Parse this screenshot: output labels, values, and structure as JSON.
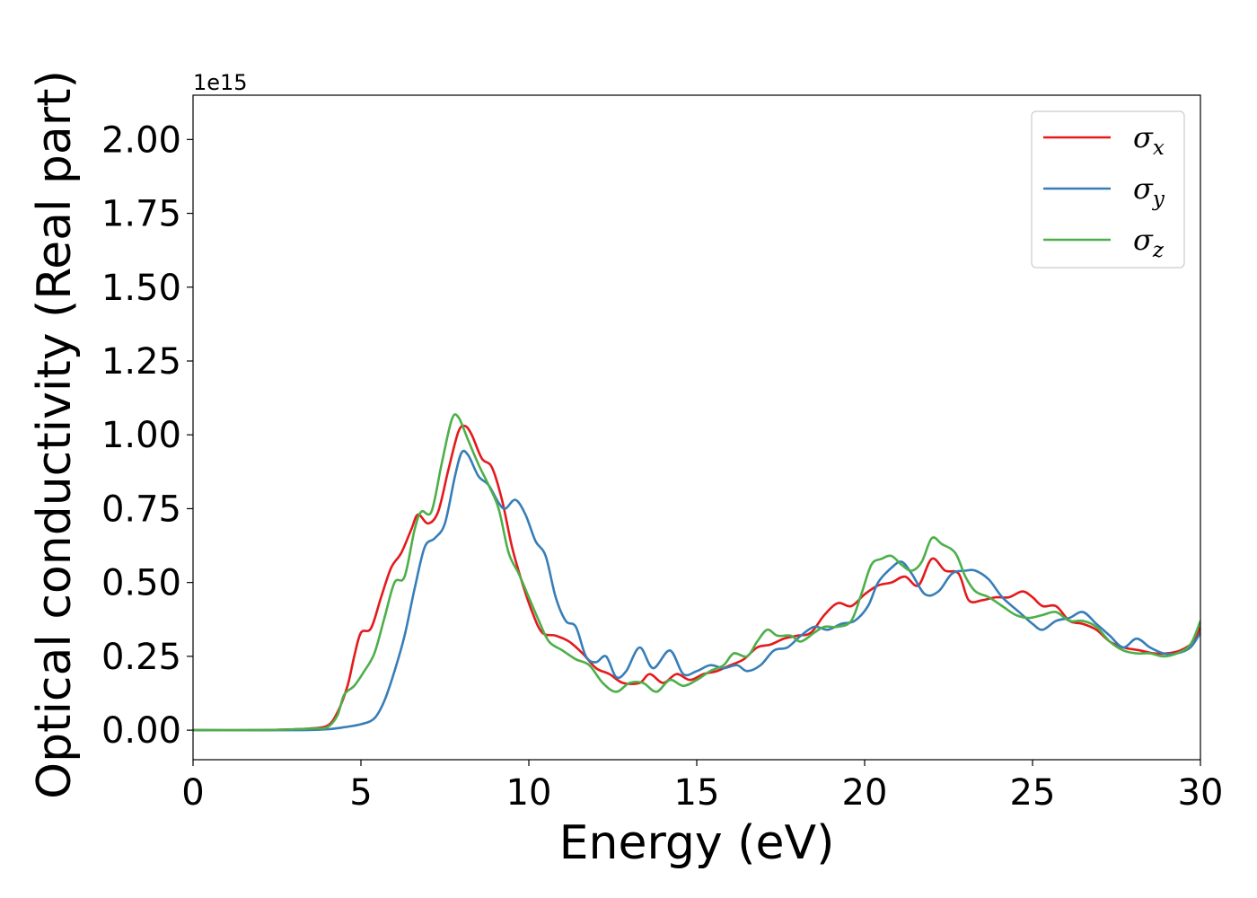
{
  "chart_data": {
    "type": "line",
    "xlabel": "Energy (eV)",
    "ylabel": "Optical conductivity (Real part)",
    "y_offset_label": "1e15",
    "xlim": [
      0,
      30
    ],
    "ylim": [
      -0.1,
      2.15
    ],
    "x_ticks": [
      0,
      5,
      10,
      15,
      20,
      25,
      30
    ],
    "x_tick_labels": [
      "0",
      "5",
      "10",
      "15",
      "20",
      "25",
      "30"
    ],
    "y_ticks": [
      0.0,
      0.25,
      0.5,
      0.75,
      1.0,
      1.25,
      1.5,
      1.75,
      2.0
    ],
    "y_tick_labels": [
      "0.00",
      "0.25",
      "0.50",
      "0.75",
      "1.00",
      "1.25",
      "1.50",
      "1.75",
      "2.00"
    ],
    "grid": false,
    "legend_position": "top-right",
    "legend": [
      {
        "symbol": "σ",
        "subscript": "x",
        "color": "#e41a1c"
      },
      {
        "symbol": "σ",
        "subscript": "y",
        "color": "#377eb8"
      },
      {
        "symbol": "σ",
        "subscript": "z",
        "color": "#4daf4a"
      }
    ],
    "series": [
      {
        "color": "#e41a1c",
        "points": [
          [
            0,
            0
          ],
          [
            2,
            0
          ],
          [
            3,
            0.003
          ],
          [
            3.5,
            0.006
          ],
          [
            4,
            0.015
          ],
          [
            4.3,
            0.06
          ],
          [
            4.6,
            0.15
          ],
          [
            4.8,
            0.25
          ],
          [
            5,
            0.33
          ],
          [
            5.3,
            0.345
          ],
          [
            5.6,
            0.45
          ],
          [
            5.9,
            0.55
          ],
          [
            6.2,
            0.6
          ],
          [
            6.5,
            0.68
          ],
          [
            6.7,
            0.73
          ],
          [
            7,
            0.7
          ],
          [
            7.3,
            0.74
          ],
          [
            7.6,
            0.88
          ],
          [
            7.9,
            1.01
          ],
          [
            8.1,
            1.03
          ],
          [
            8.3,
            1.0
          ],
          [
            8.6,
            0.92
          ],
          [
            8.9,
            0.89
          ],
          [
            9.2,
            0.78
          ],
          [
            9.5,
            0.62
          ],
          [
            9.8,
            0.5
          ],
          [
            10.1,
            0.4
          ],
          [
            10.4,
            0.33
          ],
          [
            10.8,
            0.32
          ],
          [
            11.2,
            0.3
          ],
          [
            11.6,
            0.26
          ],
          [
            12,
            0.21
          ],
          [
            12.4,
            0.19
          ],
          [
            12.8,
            0.16
          ],
          [
            13.3,
            0.16
          ],
          [
            13.6,
            0.19
          ],
          [
            14,
            0.16
          ],
          [
            14.4,
            0.19
          ],
          [
            14.8,
            0.17
          ],
          [
            15.2,
            0.19
          ],
          [
            15.6,
            0.2
          ],
          [
            16,
            0.22
          ],
          [
            16.4,
            0.24
          ],
          [
            16.8,
            0.28
          ],
          [
            17.2,
            0.29
          ],
          [
            17.6,
            0.31
          ],
          [
            18,
            0.32
          ],
          [
            18.4,
            0.33
          ],
          [
            18.8,
            0.39
          ],
          [
            19.2,
            0.43
          ],
          [
            19.6,
            0.42
          ],
          [
            20,
            0.46
          ],
          [
            20.4,
            0.49
          ],
          [
            20.8,
            0.5
          ],
          [
            21.2,
            0.52
          ],
          [
            21.6,
            0.49
          ],
          [
            22,
            0.58
          ],
          [
            22.4,
            0.54
          ],
          [
            22.8,
            0.53
          ],
          [
            23.1,
            0.44
          ],
          [
            23.5,
            0.44
          ],
          [
            23.9,
            0.45
          ],
          [
            24.3,
            0.45
          ],
          [
            24.7,
            0.47
          ],
          [
            25,
            0.45
          ],
          [
            25.3,
            0.42
          ],
          [
            25.7,
            0.42
          ],
          [
            26.1,
            0.37
          ],
          [
            26.5,
            0.36
          ],
          [
            26.9,
            0.34
          ],
          [
            27.3,
            0.3
          ],
          [
            27.7,
            0.28
          ],
          [
            28.2,
            0.27
          ],
          [
            28.6,
            0.26
          ],
          [
            29,
            0.26
          ],
          [
            29.4,
            0.27
          ],
          [
            29.8,
            0.3
          ],
          [
            30,
            0.35
          ]
        ]
      },
      {
        "color": "#377eb8",
        "points": [
          [
            0,
            0
          ],
          [
            3,
            0
          ],
          [
            4,
            0.003
          ],
          [
            4.5,
            0.01
          ],
          [
            5,
            0.02
          ],
          [
            5.4,
            0.04
          ],
          [
            5.7,
            0.1
          ],
          [
            6,
            0.2
          ],
          [
            6.3,
            0.32
          ],
          [
            6.6,
            0.48
          ],
          [
            6.9,
            0.62
          ],
          [
            7.2,
            0.65
          ],
          [
            7.5,
            0.7
          ],
          [
            7.8,
            0.86
          ],
          [
            8.0,
            0.94
          ],
          [
            8.2,
            0.93
          ],
          [
            8.5,
            0.86
          ],
          [
            8.8,
            0.83
          ],
          [
            9.1,
            0.77
          ],
          [
            9.3,
            0.75
          ],
          [
            9.6,
            0.78
          ],
          [
            9.9,
            0.73
          ],
          [
            10.2,
            0.64
          ],
          [
            10.5,
            0.59
          ],
          [
            10.8,
            0.45
          ],
          [
            11.1,
            0.37
          ],
          [
            11.4,
            0.35
          ],
          [
            11.7,
            0.25
          ],
          [
            12,
            0.23
          ],
          [
            12.3,
            0.25
          ],
          [
            12.6,
            0.18
          ],
          [
            12.9,
            0.2
          ],
          [
            13.3,
            0.28
          ],
          [
            13.7,
            0.21
          ],
          [
            14.2,
            0.27
          ],
          [
            14.6,
            0.19
          ],
          [
            15,
            0.2
          ],
          [
            15.4,
            0.22
          ],
          [
            15.8,
            0.21
          ],
          [
            16.2,
            0.22
          ],
          [
            16.5,
            0.2
          ],
          [
            16.9,
            0.22
          ],
          [
            17.3,
            0.27
          ],
          [
            17.7,
            0.28
          ],
          [
            18.1,
            0.32
          ],
          [
            18.5,
            0.35
          ],
          [
            18.9,
            0.34
          ],
          [
            19.3,
            0.36
          ],
          [
            19.7,
            0.37
          ],
          [
            20.1,
            0.42
          ],
          [
            20.4,
            0.5
          ],
          [
            20.8,
            0.55
          ],
          [
            21.1,
            0.57
          ],
          [
            21.4,
            0.53
          ],
          [
            21.8,
            0.46
          ],
          [
            22.2,
            0.47
          ],
          [
            22.6,
            0.53
          ],
          [
            23,
            0.54
          ],
          [
            23.3,
            0.54
          ],
          [
            23.7,
            0.51
          ],
          [
            24.1,
            0.45
          ],
          [
            24.6,
            0.4
          ],
          [
            25,
            0.36
          ],
          [
            25.3,
            0.34
          ],
          [
            25.7,
            0.37
          ],
          [
            26.1,
            0.38
          ],
          [
            26.5,
            0.4
          ],
          [
            26.9,
            0.36
          ],
          [
            27.3,
            0.32
          ],
          [
            27.7,
            0.28
          ],
          [
            28.1,
            0.31
          ],
          [
            28.5,
            0.28
          ],
          [
            28.9,
            0.26
          ],
          [
            29.3,
            0.26
          ],
          [
            29.7,
            0.28
          ],
          [
            30,
            0.33
          ]
        ]
      },
      {
        "color": "#4daf4a",
        "points": [
          [
            0,
            0
          ],
          [
            2,
            0
          ],
          [
            3,
            0.003
          ],
          [
            3.6,
            0.006
          ],
          [
            4,
            0.01
          ],
          [
            4.3,
            0.05
          ],
          [
            4.5,
            0.12
          ],
          [
            4.8,
            0.15
          ],
          [
            5.1,
            0.2
          ],
          [
            5.4,
            0.26
          ],
          [
            5.7,
            0.38
          ],
          [
            6,
            0.5
          ],
          [
            6.3,
            0.52
          ],
          [
            6.6,
            0.68
          ],
          [
            6.8,
            0.74
          ],
          [
            7.1,
            0.74
          ],
          [
            7.4,
            0.9
          ],
          [
            7.7,
            1.05
          ],
          [
            7.9,
            1.06
          ],
          [
            8.2,
            0.98
          ],
          [
            8.5,
            0.9
          ],
          [
            8.8,
            0.83
          ],
          [
            9.1,
            0.75
          ],
          [
            9.4,
            0.6
          ],
          [
            9.7,
            0.53
          ],
          [
            10,
            0.45
          ],
          [
            10.3,
            0.37
          ],
          [
            10.6,
            0.3
          ],
          [
            11,
            0.27
          ],
          [
            11.4,
            0.24
          ],
          [
            11.8,
            0.22
          ],
          [
            12.2,
            0.16
          ],
          [
            12.6,
            0.13
          ],
          [
            13,
            0.16
          ],
          [
            13.4,
            0.16
          ],
          [
            13.8,
            0.13
          ],
          [
            14.2,
            0.17
          ],
          [
            14.6,
            0.15
          ],
          [
            15,
            0.17
          ],
          [
            15.4,
            0.2
          ],
          [
            15.8,
            0.22
          ],
          [
            16.1,
            0.26
          ],
          [
            16.5,
            0.25
          ],
          [
            16.8,
            0.3
          ],
          [
            17.1,
            0.34
          ],
          [
            17.4,
            0.32
          ],
          [
            17.8,
            0.32
          ],
          [
            18.1,
            0.3
          ],
          [
            18.5,
            0.33
          ],
          [
            18.8,
            0.35
          ],
          [
            19.2,
            0.35
          ],
          [
            19.6,
            0.37
          ],
          [
            19.9,
            0.46
          ],
          [
            20.2,
            0.56
          ],
          [
            20.5,
            0.58
          ],
          [
            20.8,
            0.59
          ],
          [
            21.1,
            0.56
          ],
          [
            21.4,
            0.54
          ],
          [
            21.7,
            0.57
          ],
          [
            22,
            0.65
          ],
          [
            22.3,
            0.63
          ],
          [
            22.7,
            0.6
          ],
          [
            23,
            0.52
          ],
          [
            23.3,
            0.47
          ],
          [
            23.7,
            0.45
          ],
          [
            24.1,
            0.42
          ],
          [
            24.5,
            0.39
          ],
          [
            24.9,
            0.38
          ],
          [
            25.3,
            0.39
          ],
          [
            25.7,
            0.4
          ],
          [
            26.1,
            0.37
          ],
          [
            26.5,
            0.37
          ],
          [
            26.9,
            0.35
          ],
          [
            27.3,
            0.3
          ],
          [
            27.7,
            0.27
          ],
          [
            28.1,
            0.26
          ],
          [
            28.5,
            0.26
          ],
          [
            28.9,
            0.25
          ],
          [
            29.3,
            0.26
          ],
          [
            29.7,
            0.29
          ],
          [
            30,
            0.37
          ]
        ]
      }
    ]
  }
}
